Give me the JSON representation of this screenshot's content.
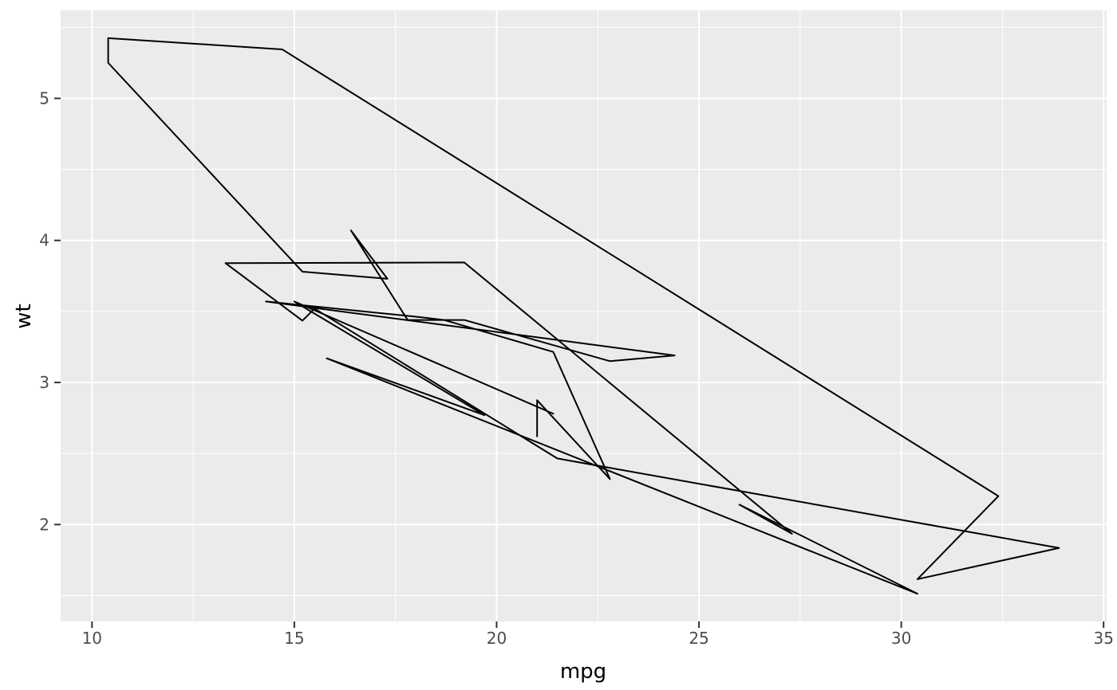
{
  "chart_data": {
    "type": "line",
    "geom": "path",
    "title": "",
    "xlabel": "mpg",
    "ylabel": "wt",
    "x": [
      21.0,
      21.0,
      22.8,
      21.4,
      18.7,
      18.1,
      14.3,
      24.4,
      22.8,
      19.2,
      17.8,
      16.4,
      17.3,
      15.2,
      10.4,
      10.4,
      14.7,
      32.4,
      30.4,
      33.9,
      21.5,
      15.5,
      15.2,
      13.3,
      19.2,
      27.3,
      26.0,
      30.4,
      15.8,
      19.7,
      15.0,
      21.4
    ],
    "y": [
      2.62,
      2.875,
      2.32,
      3.215,
      3.44,
      3.46,
      3.57,
      3.19,
      3.15,
      3.44,
      3.44,
      4.07,
      3.73,
      3.78,
      5.25,
      5.424,
      5.345,
      2.2,
      1.615,
      1.835,
      2.465,
      3.52,
      3.435,
      3.84,
      3.845,
      1.935,
      2.14,
      1.513,
      3.17,
      2.77,
      3.57,
      2.78
    ],
    "x_ticks": [
      10,
      15,
      20,
      25,
      30,
      35
    ],
    "x_tick_labels": [
      "10",
      "15",
      "20",
      "25",
      "30",
      "35"
    ],
    "y_ticks": [
      2,
      3,
      4,
      5
    ],
    "y_tick_labels": [
      "2",
      "3",
      "4",
      "5"
    ],
    "x_minor_ticks": [
      12.5,
      17.5,
      22.5,
      27.5,
      32.5
    ],
    "y_minor_ticks": [
      1.5,
      2.5,
      3.5,
      4.5,
      5.5
    ],
    "xlim": [
      9.225,
      35.075
    ],
    "ylim": [
      1.3175,
      5.6195
    ],
    "grid": true,
    "legend": "none",
    "colors": {
      "panel_background": "#EBEBEB",
      "grid_major": "#FFFFFF",
      "grid_minor": "#FFFFFF",
      "line": "#000000",
      "tick_mark": "#333333",
      "tick_label": "#4D4D4D",
      "axis_title": "#000000",
      "figure_background": "#FFFFFF"
    }
  }
}
